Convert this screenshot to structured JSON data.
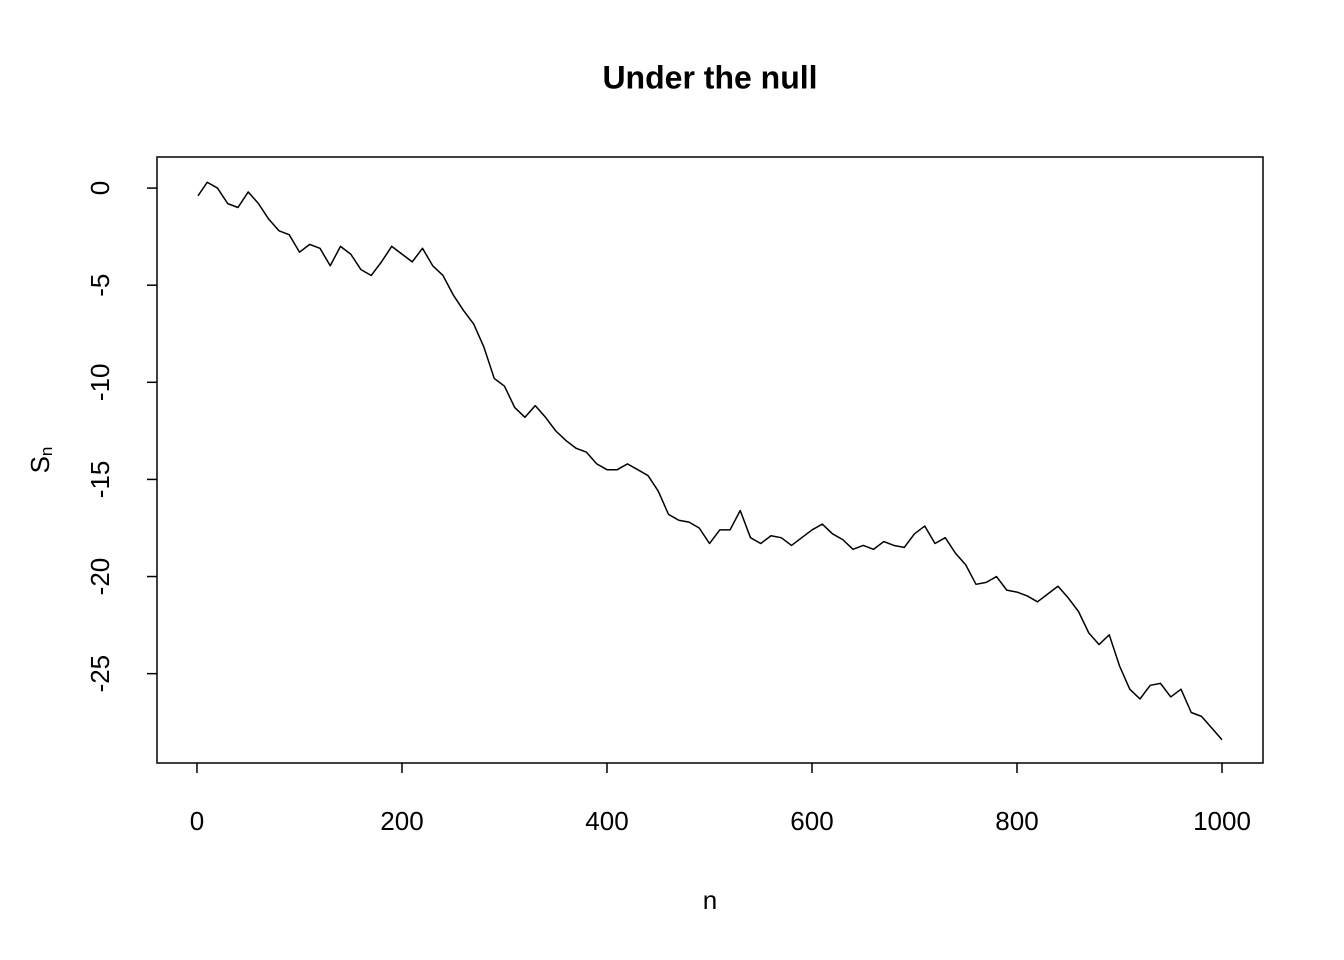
{
  "chart_data": {
    "type": "line",
    "title": "Under the null",
    "xlabel": "n",
    "ylabel": "S",
    "ylabel_subscript": "n",
    "x": [
      1,
      10,
      20,
      30,
      40,
      50,
      60,
      70,
      80,
      90,
      100,
      110,
      120,
      130,
      140,
      150,
      160,
      170,
      180,
      190,
      200,
      210,
      220,
      230,
      240,
      250,
      260,
      270,
      280,
      290,
      300,
      310,
      320,
      330,
      340,
      350,
      360,
      370,
      380,
      390,
      400,
      410,
      420,
      430,
      440,
      450,
      460,
      470,
      480,
      490,
      500,
      510,
      520,
      530,
      540,
      550,
      560,
      570,
      580,
      590,
      600,
      610,
      620,
      630,
      640,
      650,
      660,
      670,
      680,
      690,
      700,
      710,
      720,
      730,
      740,
      750,
      760,
      770,
      780,
      790,
      800,
      810,
      820,
      830,
      840,
      850,
      860,
      870,
      880,
      890,
      900,
      910,
      920,
      930,
      940,
      950,
      960,
      970,
      980,
      990,
      1000
    ],
    "series": [
      {
        "color": "#000000",
        "values": [
          -0.4,
          0.3,
          0,
          -0.8,
          -1.0,
          -0.2,
          -0.8,
          -1.6,
          -2.2,
          -2.4,
          -3.3,
          -2.9,
          -3.1,
          -4.0,
          -3.0,
          -3.4,
          -4.2,
          -4.5,
          -3.8,
          -3.0,
          -3.4,
          -3.8,
          -3.1,
          -4.0,
          -4.5,
          -5.5,
          -6.3,
          -7.0,
          -8.2,
          -9.8,
          -10.2,
          -11.3,
          -11.8,
          -11.2,
          -11.8,
          -12.5,
          -13.0,
          -13.4,
          -13.6,
          -14.2,
          -14.5,
          -14.5,
          -14.2,
          -14.5,
          -14.8,
          -15.6,
          -16.8,
          -17.1,
          -17.2,
          -17.5,
          -18.3,
          -17.6,
          -17.6,
          -16.6,
          -18.0,
          -18.3,
          -17.9,
          -18.0,
          -18.4,
          -18.0,
          -17.6,
          -17.3,
          -17.8,
          -18.1,
          -18.6,
          -18.4,
          -18.6,
          -18.2,
          -18.4,
          -18.5,
          -17.8,
          -17.4,
          -18.3,
          -18.0,
          -18.8,
          -19.4,
          -20.4,
          -20.3,
          -20.0,
          -20.7,
          -20.8,
          -21.0,
          -21.3,
          -20.9,
          -20.5,
          -21.1,
          -21.8,
          -22.9,
          -23.5,
          -23.0,
          -24.6,
          -25.8,
          -26.3,
          -25.6,
          -25.5,
          -26.2,
          -25.8,
          -27.0,
          -27.2,
          -27.8,
          -28.4
        ]
      }
    ],
    "xlim": [
      -39,
      1040
    ],
    "ylim": [
      -29.6,
      1.6
    ],
    "xticks": [
      0,
      200,
      400,
      600,
      800,
      1000
    ],
    "yticks": [
      0,
      -5,
      -10,
      -15,
      -20,
      -25
    ]
  }
}
